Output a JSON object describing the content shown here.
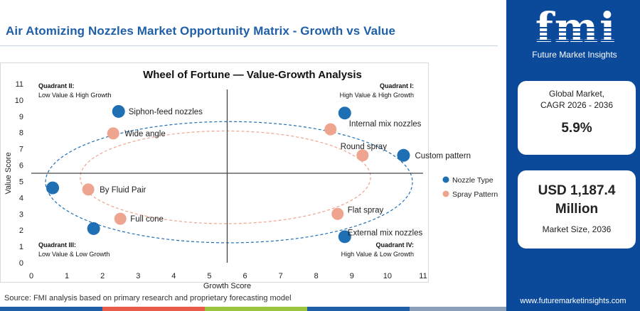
{
  "page": {
    "title": "Air Atomizing Nozzles Market Opportunity Matrix - Growth vs Value",
    "source": "Source: FMI analysis based on primary research and proprietary forecasting model"
  },
  "colors": {
    "brand_blue": "#0b4a9a",
    "nozzle_type": "#1f6fb5",
    "spray_pattern": "#eea48f",
    "bottom_bar": [
      "#1f5fa8",
      "#e85d4a",
      "#9bc53d",
      "#1f5fa8",
      "#8aa0b8"
    ]
  },
  "sidebar": {
    "logo": "fmi",
    "logo_subtitle": "Future Market Insights",
    "cagr_label_1": "Global Market,",
    "cagr_label_2": "CAGR 2026 - 2036",
    "cagr_value": "5.9%",
    "size_value_1": "USD 1,187.4",
    "size_value_2": "Million",
    "size_label": "Market Size, 2036",
    "url": "www.futuremarketinsights.com"
  },
  "chart_data": {
    "type": "scatter",
    "title": "Wheel of Fortune — Value-Growth Analysis",
    "xlabel": "Growth Score",
    "ylabel": "Value Score",
    "xlim": [
      0,
      11
    ],
    "ylim": [
      0,
      11
    ],
    "xticks": [
      0,
      1,
      2,
      3,
      4,
      5,
      6,
      7,
      8,
      9,
      10,
      11
    ],
    "yticks": [
      0,
      1,
      2,
      3,
      4,
      5,
      6,
      7,
      8,
      9,
      10,
      11
    ],
    "divider_x": 5.5,
    "divider_y": 5.5,
    "grid": false,
    "legend_position": "right",
    "quadrants": [
      {
        "name": "Quadrant II:",
        "desc": "Low Value & High Growth",
        "pos": "top-left"
      },
      {
        "name": "Quadrant I:",
        "desc": "High Value & High Growth",
        "pos": "top-right"
      },
      {
        "name": "Quadrant III:",
        "desc": "Low Value & Low Growth",
        "pos": "bottom-left"
      },
      {
        "name": "Quadrant IV:",
        "desc": "High Value & Low Growth",
        "pos": "bottom-right"
      }
    ],
    "series": [
      {
        "name": "Nozzle Type",
        "color": "#1f6fb5",
        "points": [
          {
            "label": "Siphon-feed nozzles",
            "x": 2.45,
            "y": 9.3
          },
          {
            "label": "Internal mix nozzles",
            "x": 8.8,
            "y": 9.2
          },
          {
            "label": "Custom pattern",
            "x": 10.45,
            "y": 6.6
          },
          {
            "label": "",
            "x": 0.6,
            "y": 4.6
          },
          {
            "label": "",
            "x": 1.75,
            "y": 2.1
          },
          {
            "label": "External mix nozzles",
            "x": 8.8,
            "y": 1.6
          }
        ]
      },
      {
        "name": "Spray Pattern",
        "color": "#eea48f",
        "points": [
          {
            "label": "Wide angle",
            "x": 2.3,
            "y": 7.95
          },
          {
            "label": "Round spray",
            "x": 8.4,
            "y": 8.2
          },
          {
            "label": "",
            "x": 9.3,
            "y": 6.6
          },
          {
            "label": "By Fluid Pair",
            "x": 1.6,
            "y": 4.5
          },
          {
            "label": "Full cone",
            "x": 2.5,
            "y": 2.7
          },
          {
            "label": "Flat spray",
            "x": 8.6,
            "y": 3.0
          }
        ]
      }
    ]
  }
}
